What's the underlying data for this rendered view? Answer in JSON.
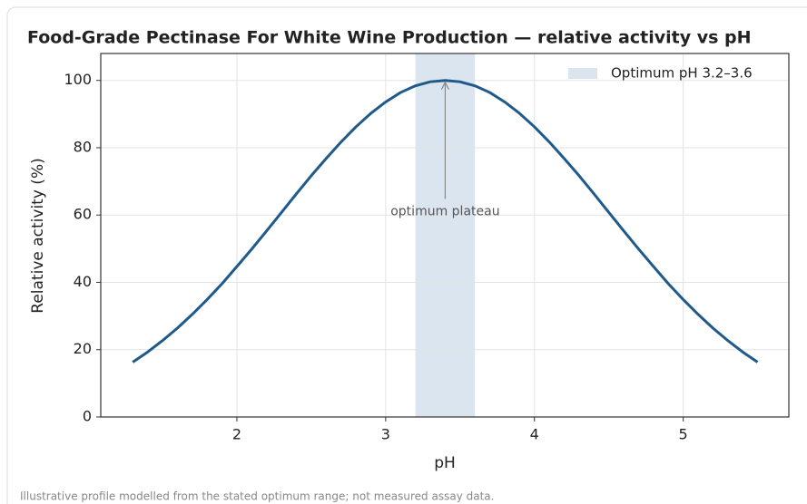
{
  "chart_data": {
    "type": "line",
    "title": "Food-Grade Pectinase For White Wine Production — relative activity vs pH",
    "xlabel": "pH",
    "ylabel": "Relative activity (%)",
    "x": [
      1.3,
      1.4,
      1.5,
      1.6,
      1.7,
      1.8,
      1.9,
      2.0,
      2.1,
      2.2,
      2.3,
      2.4,
      2.5,
      2.6,
      2.7,
      2.8,
      2.9,
      3.0,
      3.1,
      3.2,
      3.3,
      3.4,
      3.5,
      3.6,
      3.7,
      3.8,
      3.9,
      4.0,
      4.1,
      4.2,
      4.3,
      4.4,
      4.5,
      4.6,
      4.7,
      4.8,
      4.9,
      5.0,
      5.1,
      5.2,
      5.3,
      5.4,
      5.5
    ],
    "series": [
      {
        "color": "#1f5a8a",
        "values": [
          16.3,
          19.3,
          22.7,
          26.4,
          30.5,
          34.9,
          39.6,
          44.7,
          49.9,
          55.3,
          60.8,
          66.3,
          71.7,
          76.8,
          81.7,
          86.2,
          90.2,
          93.6,
          96.4,
          98.4,
          99.6,
          100,
          99.6,
          98.4,
          96.4,
          93.6,
          90.2,
          86.2,
          81.7,
          76.8,
          71.7,
          66.3,
          60.8,
          55.3,
          49.9,
          44.7,
          39.6,
          34.9,
          30.5,
          26.4,
          22.7,
          19.3,
          16.3
        ]
      }
    ],
    "band": {
      "range": [
        3.2,
        3.6
      ],
      "label": "Optimum pH 3.2–3.6",
      "color": "#dbe5f0"
    },
    "annotation": {
      "text": "optimum plateau",
      "xy": [
        3.4,
        100
      ],
      "xytext": [
        3.4,
        61
      ]
    },
    "xlim": [
      1.085,
      5.71
    ],
    "xticks": [
      2,
      3,
      4,
      5
    ],
    "ylim": [
      0,
      108
    ],
    "yticks": [
      0,
      20,
      40,
      60,
      80,
      100
    ],
    "grid": true,
    "legend": "upper right"
  },
  "footnote": "Illustrative profile modelled from the stated optimum range; not measured assay data."
}
